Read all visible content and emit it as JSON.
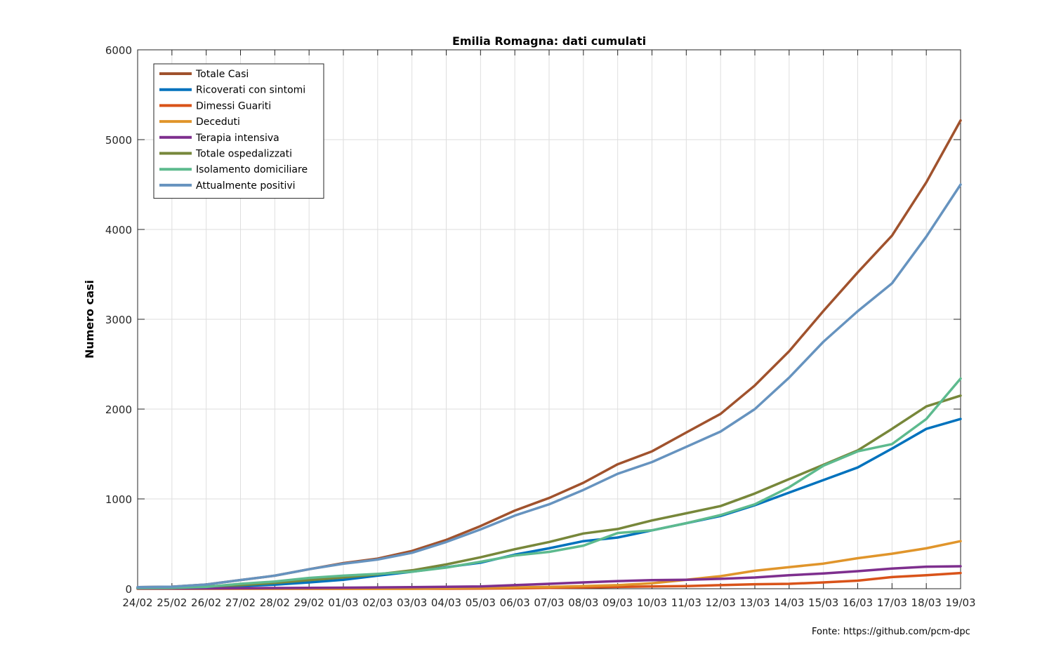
{
  "chart_data": {
    "type": "line",
    "title": "Emilia Romagna: dati cumulati",
    "xlabel": "",
    "ylabel": "Numero casi",
    "ylim": [
      0,
      6000
    ],
    "yticks": [
      0,
      1000,
      2000,
      3000,
      4000,
      5000,
      6000
    ],
    "grid": true,
    "legend_position": "top-left",
    "categories": [
      "24/02",
      "25/02",
      "26/02",
      "27/02",
      "28/02",
      "29/02",
      "01/03",
      "02/03",
      "03/03",
      "04/03",
      "05/03",
      "06/03",
      "07/03",
      "08/03",
      "09/03",
      "10/03",
      "11/03",
      "12/03",
      "13/03",
      "14/03",
      "15/03",
      "16/03",
      "17/03",
      "18/03",
      "19/03"
    ],
    "series": [
      {
        "name": "Totale Casi",
        "color": "#a0522d",
        "values": [
          18,
          23,
          47,
          97,
          145,
          217,
          285,
          335,
          420,
          544,
          698,
          870,
          1010,
          1180,
          1386,
          1530,
          1739,
          1947,
          2263,
          2644,
          3093,
          3522,
          3931,
          4525,
          5214
        ]
      },
      {
        "name": "Ricoverati con sintomi",
        "color": "#0072bd",
        "values": [
          10,
          12,
          20,
          30,
          45,
          70,
          100,
          145,
          190,
          240,
          290,
          380,
          450,
          530,
          570,
          650,
          730,
          810,
          930,
          1070,
          1210,
          1350,
          1560,
          1780,
          1890
        ]
      },
      {
        "name": "Dimessi Guariti",
        "color": "#d95319",
        "values": [
          0,
          0,
          0,
          0,
          0,
          0,
          0,
          0,
          0,
          0,
          2,
          5,
          10,
          15,
          20,
          25,
          30,
          40,
          50,
          55,
          70,
          90,
          130,
          150,
          175
        ]
      },
      {
        "name": "Deceduti",
        "color": "#e0952b",
        "values": [
          0,
          0,
          0,
          0,
          0,
          0,
          0,
          0,
          0,
          5,
          10,
          15,
          20,
          30,
          40,
          60,
          100,
          140,
          200,
          240,
          280,
          340,
          390,
          450,
          530
        ]
      },
      {
        "name": "Terapia intensiva",
        "color": "#7e2f8e",
        "values": [
          3,
          3,
          4,
          6,
          8,
          10,
          12,
          15,
          18,
          22,
          25,
          40,
          55,
          70,
          85,
          95,
          100,
          110,
          125,
          150,
          170,
          195,
          225,
          245,
          250
        ]
      },
      {
        "name": "Totale ospedalizzati",
        "color": "#77873a",
        "values": [
          10,
          15,
          25,
          40,
          65,
          95,
          125,
          160,
          205,
          270,
          350,
          440,
          520,
          615,
          665,
          760,
          840,
          920,
          1060,
          1220,
          1380,
          1540,
          1780,
          2030,
          2150
        ]
      },
      {
        "name": "Isolamento domiciliare",
        "color": "#5dba8e",
        "values": [
          8,
          10,
          20,
          55,
          80,
          120,
          145,
          165,
          190,
          235,
          300,
          370,
          410,
          480,
          620,
          650,
          730,
          820,
          940,
          1130,
          1370,
          1530,
          1610,
          1890,
          2340
        ]
      },
      {
        "name": "Attualmente positivi",
        "color": "#6693bf",
        "values": [
          18,
          23,
          47,
          97,
          145,
          217,
          278,
          325,
          400,
          520,
          660,
          815,
          940,
          1100,
          1280,
          1410,
          1580,
          1750,
          2000,
          2350,
          2750,
          3090,
          3400,
          3920,
          4500
        ]
      }
    ]
  },
  "source_text": "Fonte: https://github.com/pcm-dpc"
}
